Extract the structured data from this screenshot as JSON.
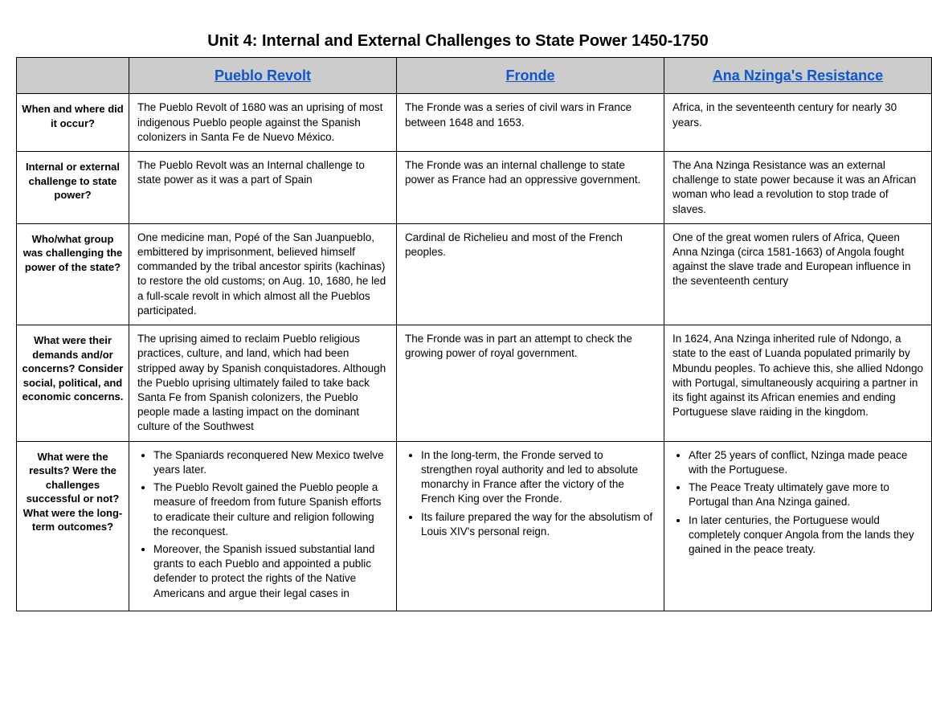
{
  "title": "Unit 4: Internal and External Challenges to State Power 1450-1750",
  "columns": {
    "c1": "Pueblo Revolt",
    "c2": "Fronde",
    "c3": "Ana Nzinga's Resistance"
  },
  "rows": {
    "r1": {
      "label": "When and where did it occur?",
      "c1": "The Pueblo Revolt of 1680 was an uprising of most indigenous Pueblo people against the Spanish colonizers in Santa Fe de Nuevo México.",
      "c2": "The Fronde was a series of civil wars in France between 1648 and 1653.",
      "c3": "Africa, in the seventeenth century for nearly 30 years."
    },
    "r2": {
      "label": "Internal or external challenge to state power?",
      "c1": "The Pueblo Revolt was an Internal challenge to state power as it was a part of Spain",
      "c2": "The Fronde was an internal challenge to state power as France had an oppressive government.",
      "c3": "The Ana Nzinga Resistance was an external challenge to state power because it was an African woman who lead a revolution to stop trade of slaves."
    },
    "r3": {
      "label": "Who/what group was challenging the power of the state?",
      "c1": "One medicine man, Popé of the San Juanpueblo, embittered by imprisonment, believed himself commanded by the tribal ancestor spirits (kachinas) to restore the old customs; on Aug. 10, 1680, he led a full-scale revolt in which almost all the Pueblos participated.",
      "c2": "Cardinal de Richelieu and most of the French peoples.",
      "c3": "One of the great women rulers of Africa, Queen Anna Nzinga (circa 1581-1663) of Angola fought against the slave trade and European influence in the seventeenth century"
    },
    "r4": {
      "label": "What were their demands and/or concerns? Consider social, political, and economic concerns.",
      "c1": "The uprising aimed to reclaim Pueblo religious practices, culture, and land, which had been stripped away by Spanish conquistadores. Although the Pueblo uprising ultimately failed to take back Santa Fe from Spanish colonizers, the Pueblo people made a lasting impact on the dominant culture of the Southwest",
      "c2": "The Fronde was in part an attempt to check the growing power of royal government.",
      "c3": "In 1624, Ana Nzinga inherited rule of Ndongo, a state to the east of Luanda populated primarily by Mbundu peoples. To achieve this, she allied Ndongo with Portugal, simultaneously acquiring a partner in its fight against its African enemies and ending Portuguese slave raiding in the kingdom."
    },
    "r5": {
      "label": "What were the results? Were the challenges successful or not? What were the long-term outcomes?",
      "c1_items": [
        "The Spaniards reconquered New Mexico twelve years later.",
        "The Pueblo Revolt gained the Pueblo people a measure of freedom from future Spanish efforts to eradicate their culture and religion following the reconquest.",
        "Moreover, the Spanish issued substantial land grants to each Pueblo and appointed a public defender to protect the rights of the Native Americans and argue their legal cases in"
      ],
      "c2_items": [
        "In the long-term, the Fronde served to strengthen royal authority and led to absolute monarchy in France after the victory of the French King over the Fronde.",
        "Its failure prepared the way for the absolutism of Louis XIV's personal reign."
      ],
      "c3_items": [
        "After 25 years of conflict, Nzinga made peace with the Portuguese.",
        "The Peace Treaty ultimately gave more to Portugal than Ana Nzinga gained.",
        "In later centuries, the Portuguese would completely conquer Angola from the lands they gained in the peace treaty."
      ]
    }
  }
}
